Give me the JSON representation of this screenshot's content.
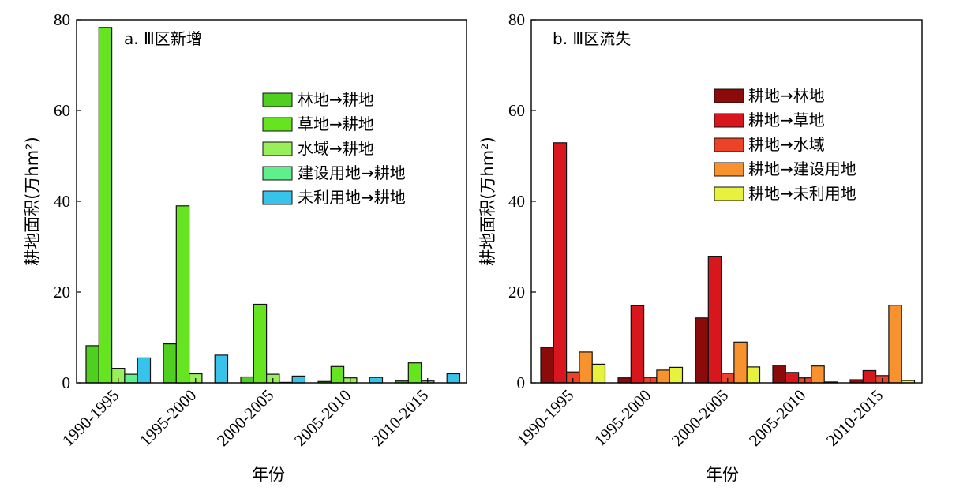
{
  "chart_data": [
    {
      "type": "bar",
      "title": "a. Ⅲ区新增",
      "xlabel": "年份",
      "ylabel": "耕地面积(万hm²)",
      "ylim": [
        0,
        80
      ],
      "yticks": [
        "0",
        "20",
        "40",
        "60",
        "80"
      ],
      "categories": [
        "1990-1995",
        "1995-2000",
        "2000-2005",
        "2005-2010",
        "2010-2015"
      ],
      "legend_position": "top-right",
      "series": [
        {
          "name": "林地→耕地",
          "color": "#4fcf1f",
          "values": [
            8.2,
            8.6,
            1.3,
            0.3,
            0.4
          ]
        },
        {
          "name": "草地→耕地",
          "color": "#66e41f",
          "values": [
            78.3,
            39.0,
            17.3,
            3.6,
            4.4
          ]
        },
        {
          "name": "水域→耕地",
          "color": "#99ef5a",
          "values": [
            3.2,
            2.0,
            1.9,
            1.1,
            0.4
          ]
        },
        {
          "name": "建设用地→耕地",
          "color": "#5ef08a",
          "values": [
            1.9,
            0.0,
            0.1,
            0.0,
            0.0
          ]
        },
        {
          "name": "未利用地→耕地",
          "color": "#38c3ea",
          "values": [
            5.5,
            6.1,
            1.5,
            1.2,
            2.0
          ]
        }
      ]
    },
    {
      "type": "bar",
      "title": "b. Ⅲ区流失",
      "xlabel": "年份",
      "ylabel": "耕地面积(万hm²)",
      "ylim": [
        0,
        80
      ],
      "yticks": [
        "0",
        "20",
        "40",
        "60",
        "80"
      ],
      "categories": [
        "1990-1995",
        "1995-2000",
        "2000-2005",
        "2005-2010",
        "2010-2015"
      ],
      "legend_position": "top-right",
      "series": [
        {
          "name": "耕地→林地",
          "color": "#8b0b0b",
          "values": [
            7.8,
            1.1,
            14.3,
            3.9,
            0.7
          ]
        },
        {
          "name": "耕地→草地",
          "color": "#d8161d",
          "values": [
            52.9,
            17.0,
            27.9,
            2.3,
            2.7
          ]
        },
        {
          "name": "耕地→水域",
          "color": "#ec4328",
          "values": [
            2.4,
            1.2,
            2.1,
            1.1,
            1.6
          ]
        },
        {
          "name": "耕地→建设用地",
          "color": "#f7922f",
          "values": [
            6.8,
            2.8,
            9.0,
            3.7,
            17.1
          ]
        },
        {
          "name": "耕地→未利用地",
          "color": "#e6f23e",
          "values": [
            4.1,
            3.4,
            3.5,
            0.2,
            0.5
          ]
        }
      ]
    }
  ]
}
